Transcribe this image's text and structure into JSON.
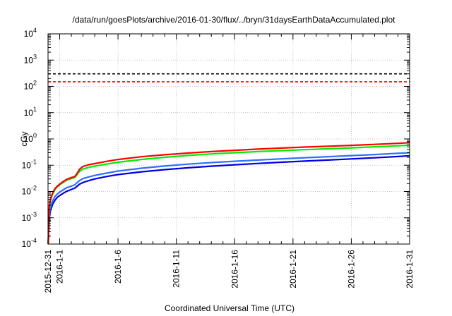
{
  "chart_data": {
    "type": "line",
    "title": "/data/run/goesPlots/archive/2016-01-30/flux/../bryn/31daysEarthDataAccumulated.plot",
    "xlabel": "Coordinated Universal Time (UTC)",
    "ylabel": "cGy",
    "yscale": "log",
    "ylim": [
      0.0001,
      10000
    ],
    "xlim": [
      0,
      31
    ],
    "y_ticks": [
      {
        "value": 0.0001,
        "base": "10",
        "exp": "-4"
      },
      {
        "value": 0.001,
        "base": "10",
        "exp": "-3"
      },
      {
        "value": 0.01,
        "base": "10",
        "exp": "-2"
      },
      {
        "value": 0.1,
        "base": "10",
        "exp": "-1"
      },
      {
        "value": 1,
        "base": "10",
        "exp": "0"
      },
      {
        "value": 10,
        "base": "10",
        "exp": "1"
      },
      {
        "value": 100,
        "base": "10",
        "exp": "2"
      },
      {
        "value": 1000,
        "base": "10",
        "exp": "3"
      },
      {
        "value": 10000,
        "base": "10",
        "exp": "4"
      }
    ],
    "x_ticks": [
      {
        "value": 0,
        "label": "2015-12-31"
      },
      {
        "value": 1,
        "label": "2016-1-1"
      },
      {
        "value": 6,
        "label": "2016-1-6"
      },
      {
        "value": 11,
        "label": "2016-1-11"
      },
      {
        "value": 16,
        "label": "2016-1-16"
      },
      {
        "value": 21,
        "label": "2016-1-21"
      },
      {
        "value": 26,
        "label": "2016-1-26"
      },
      {
        "value": 31,
        "label": "2016-1-31"
      }
    ],
    "grid": true,
    "thresholds": [
      {
        "value": 300,
        "color": "#000000",
        "dash": true
      },
      {
        "value": 150,
        "color": "#ff0000",
        "dash": true
      }
    ],
    "series": [
      {
        "color": "#ff0000",
        "x": [
          0.02,
          0.1,
          0.2,
          0.4,
          0.6,
          0.8,
          1.0,
          1.3,
          1.6,
          2.0,
          2.3,
          2.5,
          2.7,
          3.0,
          3.5,
          4,
          5,
          6,
          8,
          10,
          12,
          14,
          16,
          18,
          20,
          22,
          24,
          26,
          28,
          30,
          31
        ],
        "y": [
          0.0001,
          0.0025,
          0.005,
          0.009,
          0.013,
          0.016,
          0.019,
          0.024,
          0.029,
          0.034,
          0.037,
          0.05,
          0.07,
          0.09,
          0.105,
          0.115,
          0.14,
          0.165,
          0.21,
          0.25,
          0.29,
          0.33,
          0.37,
          0.41,
          0.45,
          0.49,
          0.53,
          0.57,
          0.62,
          0.68,
          0.72
        ]
      },
      {
        "color": "#00ee00",
        "x": [
          0.02,
          0.1,
          0.2,
          0.4,
          0.6,
          0.8,
          1.0,
          1.3,
          1.6,
          2.0,
          2.3,
          2.5,
          2.7,
          3.0,
          3.5,
          4,
          5,
          6,
          8,
          10,
          12,
          14,
          16,
          18,
          20,
          22,
          24,
          26,
          28,
          30,
          31
        ],
        "y": [
          0.0001,
          0.002,
          0.0045,
          0.008,
          0.012,
          0.015,
          0.018,
          0.022,
          0.027,
          0.031,
          0.034,
          0.045,
          0.058,
          0.072,
          0.083,
          0.092,
          0.11,
          0.13,
          0.165,
          0.2,
          0.235,
          0.27,
          0.3,
          0.33,
          0.36,
          0.39,
          0.42,
          0.46,
          0.5,
          0.55,
          0.58
        ]
      },
      {
        "color": "#3070ff",
        "x": [
          0.02,
          0.1,
          0.2,
          0.4,
          0.6,
          0.8,
          1.0,
          1.3,
          1.6,
          2.0,
          2.3,
          2.5,
          2.7,
          3.0,
          3.5,
          4,
          5,
          6,
          8,
          10,
          12,
          14,
          16,
          18,
          20,
          22,
          24,
          26,
          28,
          30,
          31
        ],
        "y": [
          0.0001,
          0.0012,
          0.0025,
          0.0045,
          0.0065,
          0.008,
          0.0095,
          0.0115,
          0.014,
          0.016,
          0.018,
          0.022,
          0.026,
          0.031,
          0.036,
          0.041,
          0.05,
          0.06,
          0.077,
          0.093,
          0.11,
          0.126,
          0.142,
          0.158,
          0.175,
          0.193,
          0.212,
          0.232,
          0.255,
          0.285,
          0.3
        ]
      },
      {
        "color": "#0000e0",
        "x": [
          0.02,
          0.1,
          0.2,
          0.4,
          0.6,
          0.8,
          1.0,
          1.3,
          1.6,
          2.0,
          2.3,
          2.5,
          2.7,
          3.0,
          3.5,
          4,
          5,
          6,
          8,
          10,
          12,
          14,
          16,
          18,
          20,
          22,
          24,
          26,
          28,
          30,
          31
        ],
        "y": [
          0.0001,
          0.0009,
          0.0018,
          0.0033,
          0.0047,
          0.006,
          0.007,
          0.0085,
          0.0102,
          0.012,
          0.0135,
          0.016,
          0.019,
          0.022,
          0.026,
          0.03,
          0.037,
          0.044,
          0.056,
          0.068,
          0.08,
          0.092,
          0.104,
          0.117,
          0.13,
          0.144,
          0.158,
          0.174,
          0.192,
          0.215,
          0.23
        ]
      }
    ]
  }
}
